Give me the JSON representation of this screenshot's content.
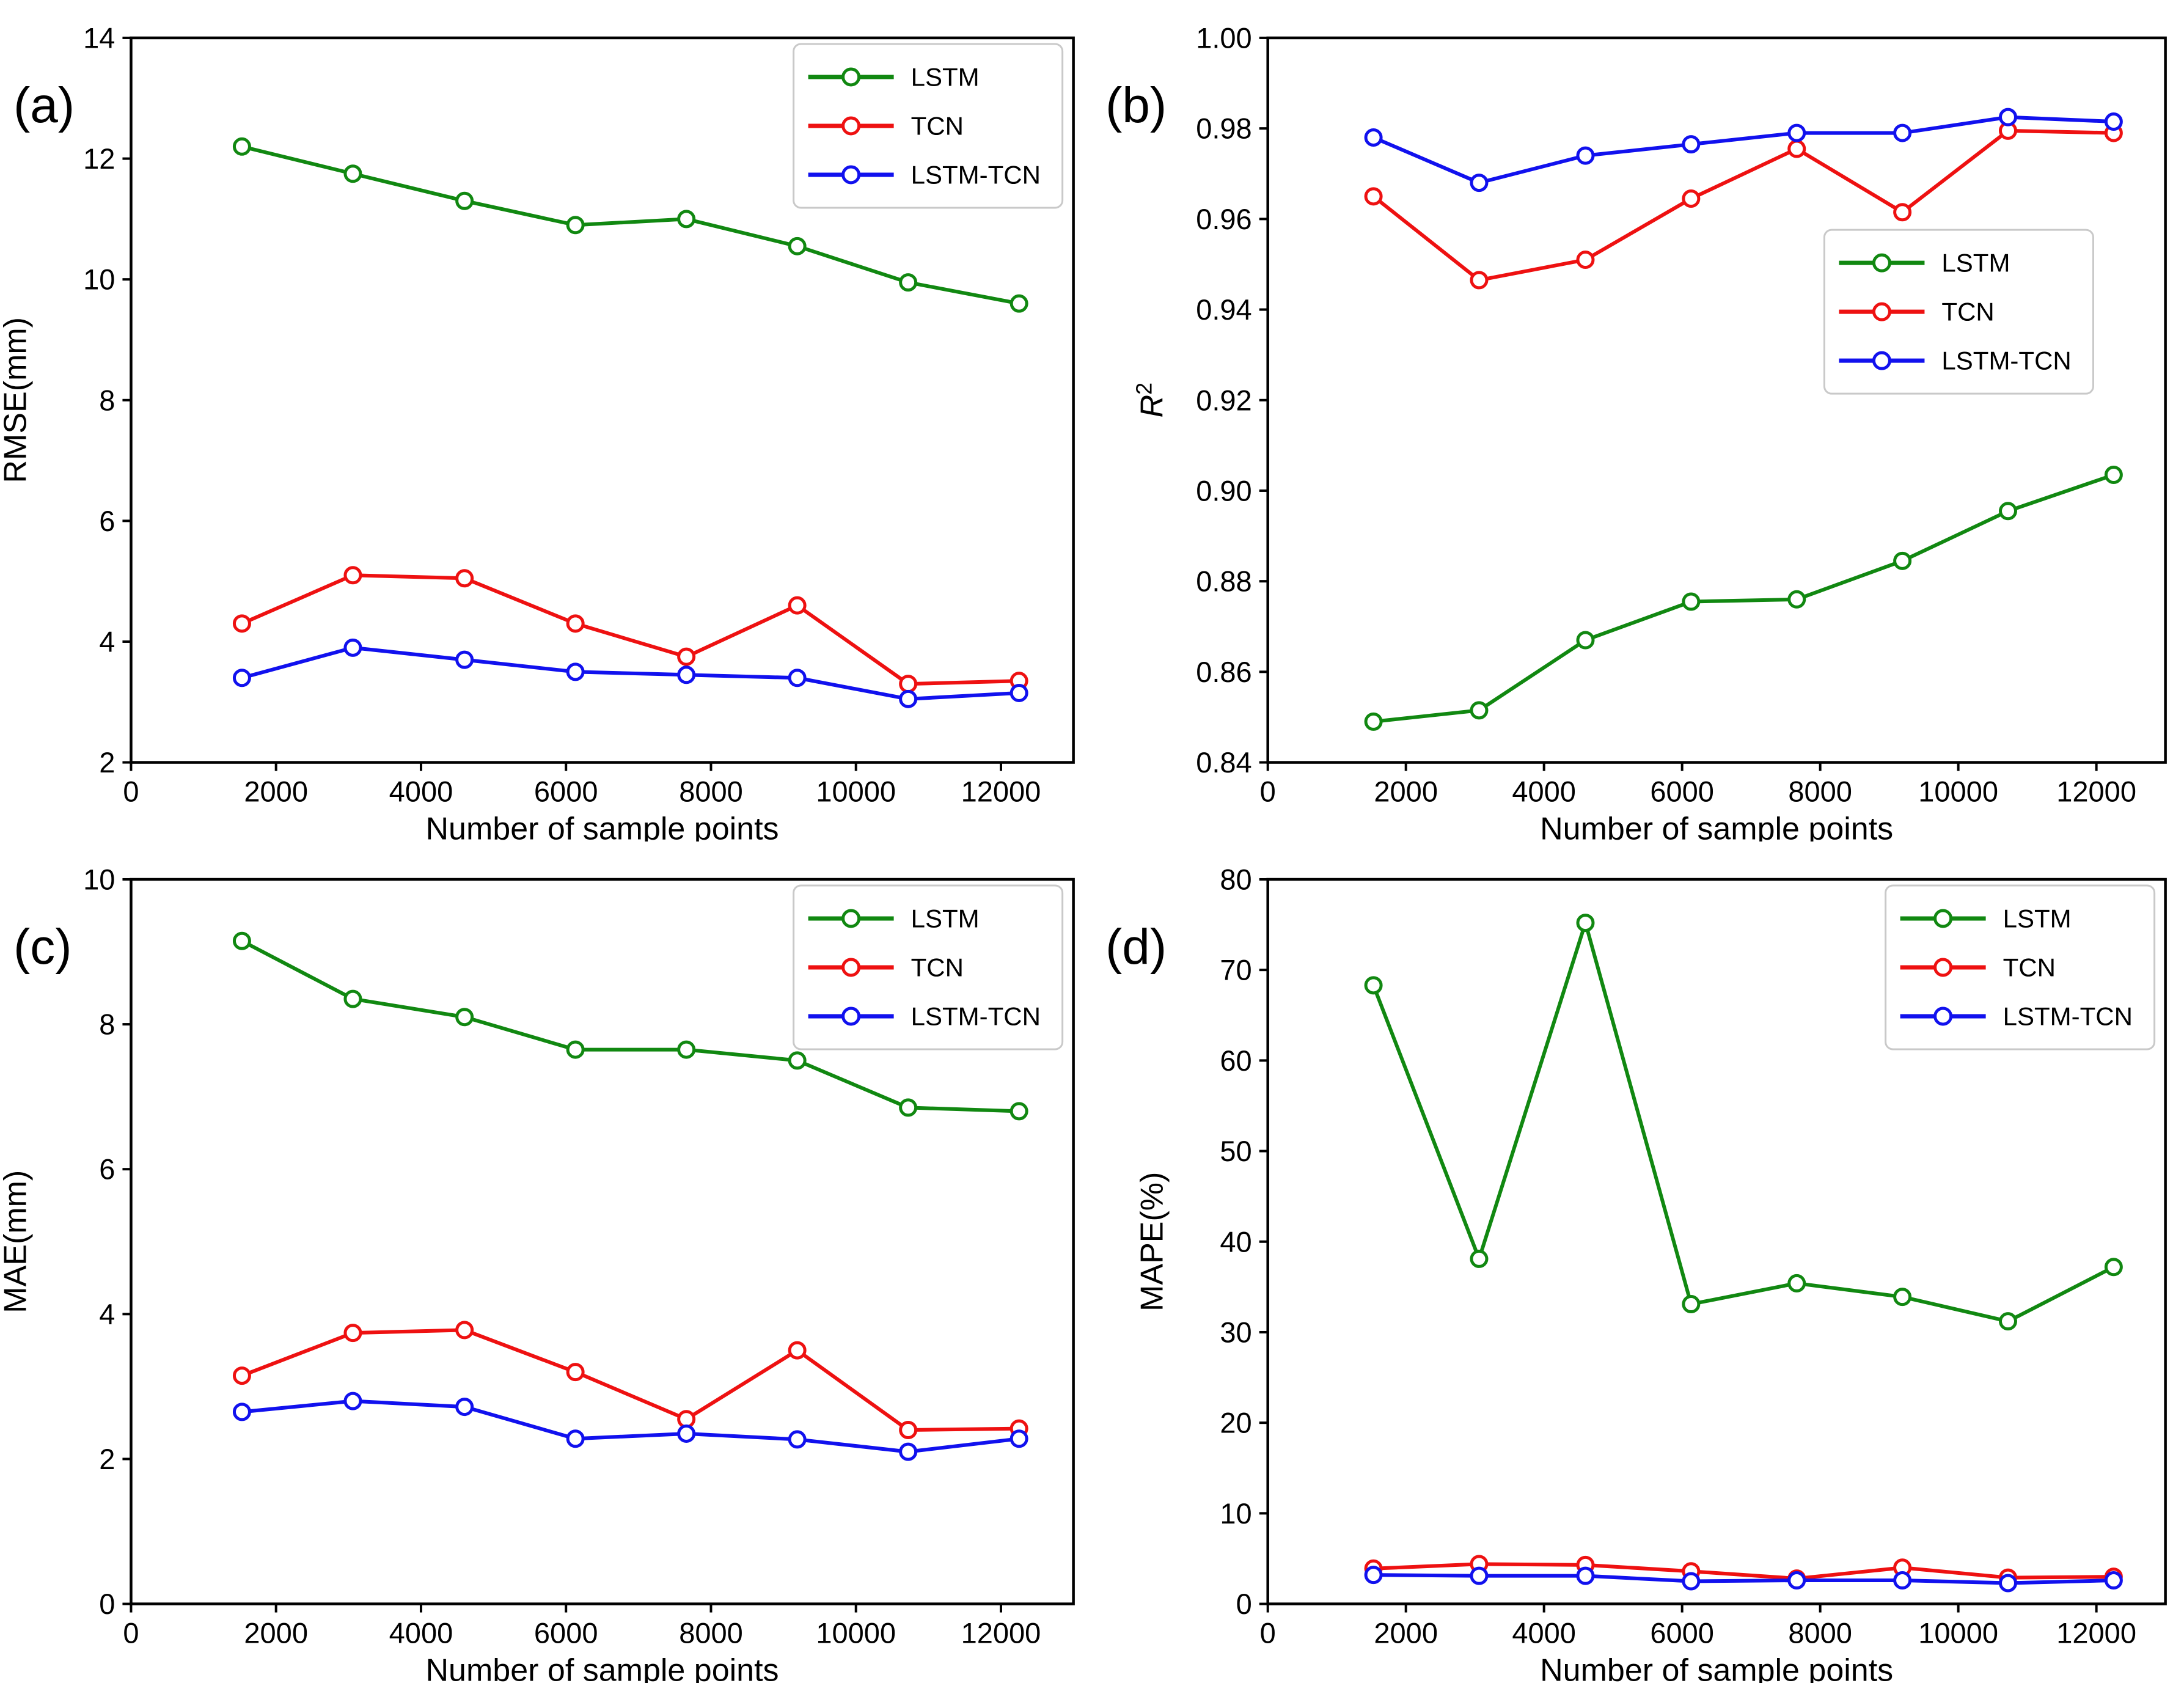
{
  "figure": {
    "background": "#ffffff",
    "xlabel": "Number of sample points",
    "x_ticks": [
      0,
      2000,
      4000,
      6000,
      8000,
      10000,
      12000
    ],
    "x_max": 13000,
    "sample_x": [
      1530,
      3060,
      4600,
      6130,
      7660,
      9190,
      10720,
      12250
    ],
    "legend_entries": [
      "LSTM",
      "TCN",
      "LSTM-TCN"
    ],
    "colors": {
      "LSTM": "#118811",
      "TCN": "#ee1111",
      "LSTM-TCN": "#1111ee",
      "axis": "#000000",
      "legend_border": "#c9c9c9",
      "legend_fill": "#ffffff"
    }
  },
  "chart_data": [
    {
      "type": "line",
      "panel_label": "(a)",
      "ylabel": "RMSE(mm)",
      "ylim": [
        2,
        14
      ],
      "ystep": 2,
      "ydec": 0,
      "legend_pos": "top-right",
      "wide_left": false,
      "grid": false,
      "series": [
        {
          "name": "LSTM",
          "values": [
            12.2,
            11.75,
            11.3,
            10.9,
            11.0,
            10.55,
            9.95,
            9.6
          ]
        },
        {
          "name": "TCN",
          "values": [
            4.3,
            5.1,
            5.05,
            4.3,
            3.75,
            4.6,
            3.3,
            3.35
          ]
        },
        {
          "name": "LSTM-TCN",
          "values": [
            3.4,
            3.9,
            3.7,
            3.5,
            3.45,
            3.4,
            3.05,
            3.15
          ]
        }
      ]
    },
    {
      "type": "line",
      "panel_label": "(b)",
      "ylabel": "R2",
      "ylabel_math": true,
      "ylim": [
        0.84,
        1.0
      ],
      "ystep": 0.02,
      "ydec": 2,
      "legend_pos": "right-center",
      "wide_left": true,
      "grid": false,
      "series": [
        {
          "name": "LSTM",
          "values": [
            0.849,
            0.8515,
            0.867,
            0.8755,
            0.876,
            0.8845,
            0.8955,
            0.9035
          ]
        },
        {
          "name": "TCN",
          "values": [
            0.965,
            0.9465,
            0.951,
            0.9645,
            0.9755,
            0.9615,
            0.9795,
            0.979
          ]
        },
        {
          "name": "LSTM-TCN",
          "values": [
            0.978,
            0.968,
            0.974,
            0.9765,
            0.979,
            0.979,
            0.9825,
            0.9815
          ]
        }
      ]
    },
    {
      "type": "line",
      "panel_label": "(c)",
      "ylabel": "MAE(mm)",
      "ylim": [
        0,
        10
      ],
      "ystep": 2,
      "ydec": 0,
      "legend_pos": "top-right",
      "wide_left": false,
      "grid": false,
      "series": [
        {
          "name": "LSTM",
          "values": [
            9.15,
            8.35,
            8.1,
            7.65,
            7.65,
            7.5,
            6.85,
            6.8
          ]
        },
        {
          "name": "TCN",
          "values": [
            3.15,
            3.74,
            3.78,
            3.2,
            2.55,
            3.5,
            2.4,
            2.42
          ]
        },
        {
          "name": "LSTM-TCN",
          "values": [
            2.65,
            2.8,
            2.72,
            2.28,
            2.35,
            2.27,
            2.1,
            2.28
          ]
        }
      ]
    },
    {
      "type": "line",
      "panel_label": "(d)",
      "ylabel": "MAPE(%)",
      "ylim": [
        0,
        80
      ],
      "ystep": 10,
      "ydec": 0,
      "legend_pos": "top-right",
      "wide_left": true,
      "grid": false,
      "series": [
        {
          "name": "LSTM",
          "values": [
            68.3,
            38.1,
            75.2,
            33.1,
            35.4,
            33.9,
            31.2,
            37.2
          ]
        },
        {
          "name": "TCN",
          "values": [
            3.9,
            4.4,
            4.3,
            3.6,
            2.8,
            4.0,
            2.9,
            3.0
          ]
        },
        {
          "name": "LSTM-TCN",
          "values": [
            3.2,
            3.1,
            3.1,
            2.5,
            2.6,
            2.6,
            2.3,
            2.6
          ]
        }
      ]
    }
  ]
}
